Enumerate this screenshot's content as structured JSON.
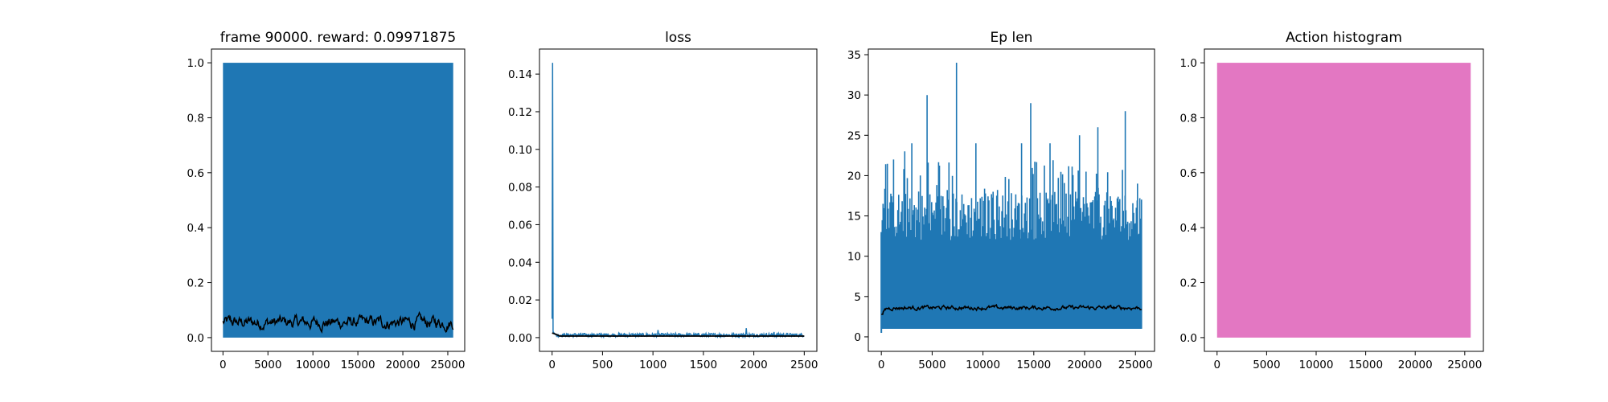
{
  "figure": {
    "background": "#ffffff"
  },
  "colors": {
    "series": "#1f77b4",
    "smoothed": "#000000",
    "histogram": "#e377c2"
  },
  "chart_data": [
    {
      "type": "line",
      "title": "frame 90000. reward: 0.09971875",
      "xlabel": "",
      "ylabel": "",
      "xlim": [
        -1280,
        26880
      ],
      "ylim": [
        -0.05,
        1.05
      ],
      "xticks": [
        0,
        5000,
        10000,
        15000,
        20000,
        25000
      ],
      "yticks": [
        0.0,
        0.2,
        0.4,
        0.6,
        0.8,
        1.0
      ],
      "ytick_labels": [
        "0.0",
        "0.2",
        "0.4",
        "0.6",
        "0.8",
        "1.0"
      ],
      "grid": false,
      "series": [
        {
          "role": "raw",
          "color": "#1f77b4",
          "x_range": [
            0,
            25600
          ],
          "values_range": [
            0,
            1
          ],
          "note_values": "binary episode rewards alternating between 0 and 1"
        },
        {
          "role": "smoothed",
          "color": "#000000",
          "x_range": [
            0,
            25600
          ],
          "mean": 0.055,
          "min": 0.02,
          "max": 0.105
        }
      ]
    },
    {
      "type": "line",
      "title": "loss",
      "xlabel": "",
      "ylabel": "",
      "xlim": [
        -125,
        2625
      ],
      "ylim": [
        -0.0073,
        0.1533
      ],
      "xticks": [
        0,
        500,
        1000,
        1500,
        2000,
        2500
      ],
      "yticks": [
        0.0,
        0.02,
        0.04,
        0.06,
        0.08,
        0.1,
        0.12,
        0.14
      ],
      "ytick_labels": [
        "0.00",
        "0.02",
        "0.04",
        "0.06",
        "0.08",
        "0.10",
        "0.12",
        "0.14"
      ],
      "grid": false,
      "series": [
        {
          "role": "raw",
          "color": "#1f77b4",
          "x_range": [
            0,
            2500
          ],
          "peak": {
            "x": 2,
            "y": 0.146
          },
          "typical": 0.0015
        },
        {
          "role": "smoothed",
          "color": "#000000",
          "x_range": [
            0,
            2500
          ],
          "typical": 0.0008
        }
      ]
    },
    {
      "type": "line",
      "title": "Ep len",
      "xlabel": "",
      "ylabel": "",
      "xlim": [
        -1280,
        26880
      ],
      "ylim": [
        -1.8,
        35.7
      ],
      "xticks": [
        0,
        5000,
        10000,
        15000,
        20000,
        25000
      ],
      "yticks": [
        0,
        5,
        10,
        15,
        20,
        25,
        30,
        35
      ],
      "ytick_labels": [
        "0",
        "5",
        "10",
        "15",
        "20",
        "25",
        "30",
        "35"
      ],
      "grid": false,
      "series": [
        {
          "role": "raw",
          "color": "#1f77b4",
          "x_range": [
            0,
            25600
          ],
          "min": 1,
          "max": 34,
          "peaks": [
            [
              1200,
              22
            ],
            [
              2300,
              23
            ],
            [
              3000,
              24
            ],
            [
              4500,
              30
            ],
            [
              7400,
              34
            ],
            [
              9300,
              24
            ],
            [
              11000,
              18
            ],
            [
              13800,
              24
            ],
            [
              14700,
              29
            ],
            [
              16600,
              24
            ],
            [
              19500,
              25
            ],
            [
              21300,
              26
            ],
            [
              24000,
              28
            ],
            [
              25200,
              19
            ]
          ]
        },
        {
          "role": "smoothed",
          "color": "#000000",
          "x_range": [
            0,
            25600
          ],
          "mean": 3.6,
          "min": 2.8,
          "max": 4.3
        }
      ]
    },
    {
      "type": "bar",
      "title": "Action histogram",
      "xlabel": "",
      "ylabel": "",
      "xlim": [
        -1280,
        26880
      ],
      "ylim": [
        -0.05,
        1.05
      ],
      "xticks": [
        0,
        5000,
        10000,
        15000,
        20000,
        25000
      ],
      "yticks": [
        0.0,
        0.2,
        0.4,
        0.6,
        0.8,
        1.0
      ],
      "ytick_labels": [
        "0.0",
        "0.2",
        "0.4",
        "0.6",
        "0.8",
        "1.0"
      ],
      "grid": false,
      "series": [
        {
          "role": "stacked-fraction",
          "color": "#e377c2",
          "x_range": [
            0,
            25600
          ],
          "values": [
            1.0
          ]
        }
      ]
    }
  ]
}
